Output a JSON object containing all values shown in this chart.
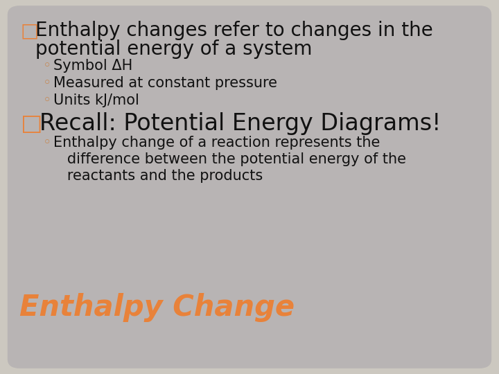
{
  "bg_outer": "#ccc8c0",
  "bg_inner": "#b8b4b4",
  "title1": "□Enthalpy changes refer to changes in the",
  "title2": "   potential energy of a system",
  "bullets1": [
    "◦ Symbol ΔH",
    "◦ Measured at constant pressure",
    "◦ Units kJ/mol"
  ],
  "title3": "□Recall: Potential Energy Diagrams!",
  "sub_lines": [
    "◦ Enthalpy change of a reaction represents the",
    "   difference between the potential energy of the",
    "   reactants and the products"
  ],
  "footer": "Enthalpy Change",
  "footer_color": "#e8823a",
  "text_color": "#111111",
  "bullet_color": "#c8854a",
  "title_fontsize": 20,
  "bullet_fontsize": 15,
  "recall_fontsize": 24,
  "footer_fontsize": 30
}
